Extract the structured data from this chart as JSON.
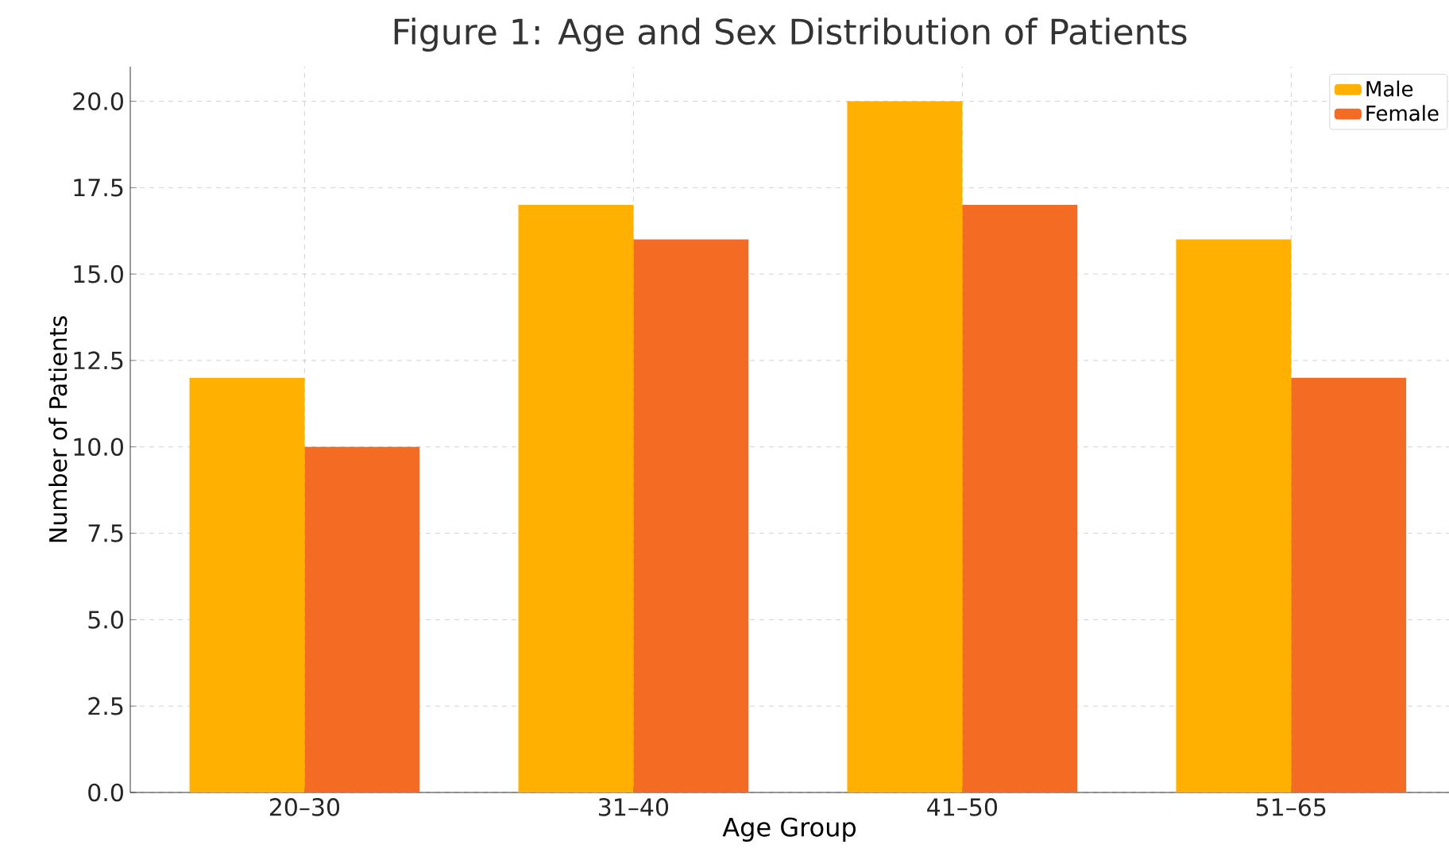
{
  "chart_data": {
    "type": "bar",
    "title": "Figure 1: Age and Sex Distribution of Patients",
    "xlabel": "Age Group",
    "ylabel": "Number of Patients",
    "categories": [
      "20–30",
      "31–40",
      "41–50",
      "51–65"
    ],
    "series": [
      {
        "name": "Male",
        "color": "#ffb000",
        "values": [
          12,
          17,
          20,
          16
        ]
      },
      {
        "name": "Female",
        "color": "#f46b23",
        "values": [
          10,
          16,
          17,
          12
        ]
      }
    ],
    "ylim": [
      0,
      21
    ],
    "yticks": [
      {
        "value": 0,
        "label": "0.0"
      },
      {
        "value": 2.5,
        "label": "2.5"
      },
      {
        "value": 5,
        "label": "5.0"
      },
      {
        "value": 7.5,
        "label": "7.5"
      },
      {
        "value": 10,
        "label": "10.0"
      },
      {
        "value": 12.5,
        "label": "12.5"
      },
      {
        "value": 15,
        "label": "15.0"
      },
      {
        "value": 17.5,
        "label": "17.5"
      },
      {
        "value": 20,
        "label": "20.0"
      }
    ],
    "grid": true,
    "legend": "top right"
  }
}
